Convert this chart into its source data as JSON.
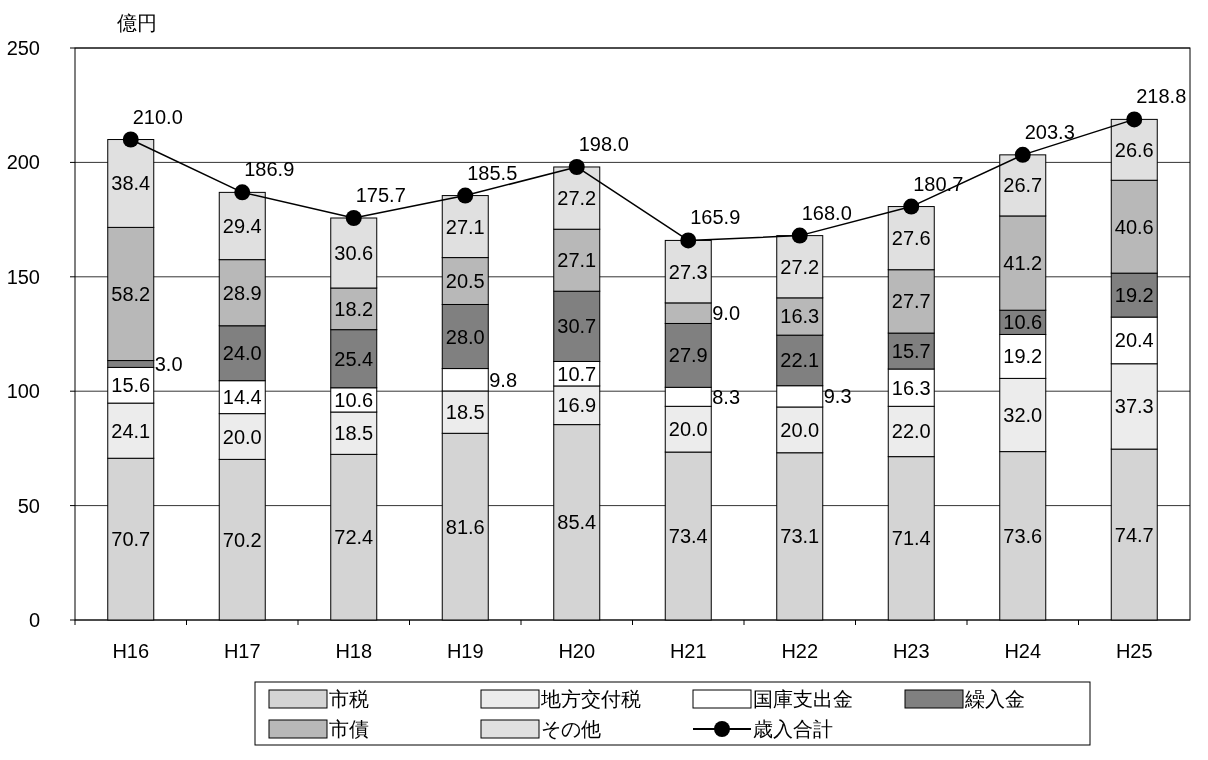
{
  "chart_data": {
    "type": "bar",
    "stacked": true,
    "ylabel": "億円",
    "categories": [
      "H16",
      "H17",
      "H18",
      "H19",
      "H20",
      "H21",
      "H22",
      "H23",
      "H24",
      "H25"
    ],
    "ylim": [
      0,
      250
    ],
    "yticks": [
      0,
      50,
      100,
      150,
      200,
      250
    ],
    "grid": "y",
    "legend": "bottom",
    "series": [
      {
        "name": "市税",
        "color": "#d4d4d4",
        "values": [
          70.7,
          70.2,
          72.4,
          81.6,
          85.4,
          73.4,
          73.1,
          71.4,
          73.6,
          74.7
        ],
        "value_labels": [
          "70.7",
          "70.2",
          "72.4",
          "81.6",
          "85.4",
          "73.4",
          "73.1",
          "71.4",
          "73.6",
          "74.7"
        ]
      },
      {
        "name": "地方交付税",
        "color": "#ececec",
        "values": [
          24.1,
          20.0,
          18.5,
          18.5,
          16.9,
          20.0,
          20.0,
          22.0,
          32.0,
          37.3
        ],
        "value_labels": [
          "24.1",
          "20.0",
          "18.5",
          "18.5",
          "16.9",
          "20.0",
          "20.0",
          "22.0",
          "32.0",
          "37.3"
        ]
      },
      {
        "name": "国庫支出金",
        "color": "#ffffff",
        "values": [
          15.6,
          14.4,
          10.6,
          9.8,
          10.7,
          8.3,
          9.3,
          16.3,
          19.2,
          20.4
        ],
        "value_labels": [
          "15.6",
          "14.4",
          "10.6",
          "9.8",
          "10.7",
          "8.3",
          "9.3",
          "16.3",
          "19.2",
          "20.4"
        ]
      },
      {
        "name": "繰入金",
        "color": "#808080",
        "values": [
          3.0,
          24.0,
          25.4,
          28.0,
          30.7,
          27.9,
          22.1,
          15.7,
          10.6,
          19.2
        ],
        "value_labels": [
          "3.0",
          "24.0",
          "25.4",
          "28.0",
          "30.7",
          "27.9",
          "22.1",
          "15.7",
          "10.6",
          "19.2"
        ]
      },
      {
        "name": "市債",
        "color": "#b8b8b8",
        "values": [
          58.2,
          28.9,
          18.2,
          20.5,
          27.1,
          9.0,
          16.3,
          27.7,
          41.2,
          40.6
        ],
        "value_labels": [
          "58.2",
          "28.9",
          "18.2",
          "20.5",
          "27.1",
          "9.0",
          "16.3",
          "27.7",
          "41.2",
          "40.6"
        ]
      },
      {
        "name": "その他",
        "color": "#e0e0e0",
        "values": [
          38.4,
          29.4,
          30.6,
          27.1,
          27.2,
          27.3,
          27.2,
          27.6,
          26.7,
          26.6
        ],
        "value_labels": [
          "38.4",
          "29.4",
          "30.6",
          "27.1",
          "27.2",
          "27.3",
          "27.2",
          "27.6",
          "26.7",
          "26.6"
        ]
      },
      {
        "name": "歳入合計",
        "type": "line",
        "color": "#000000",
        "marker": "circle",
        "values": [
          210.0,
          186.9,
          175.7,
          185.5,
          198.0,
          165.9,
          168.0,
          180.7,
          203.3,
          218.8
        ],
        "value_labels": [
          "210.0",
          "186.9",
          "175.7",
          "185.5",
          "198.0",
          "165.9",
          "168.0",
          "180.7",
          "203.3",
          "218.8"
        ]
      }
    ]
  }
}
